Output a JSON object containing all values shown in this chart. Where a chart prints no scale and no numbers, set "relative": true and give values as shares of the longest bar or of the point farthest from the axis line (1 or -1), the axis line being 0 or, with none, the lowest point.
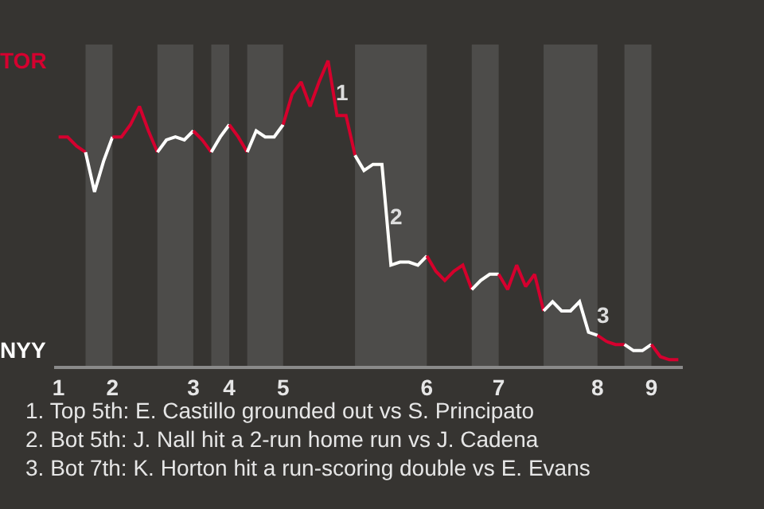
{
  "chart_data": {
    "type": "line",
    "relative": true,
    "categories": [
      "1",
      null,
      null,
      null,
      null,
      null,
      "2",
      null,
      null,
      null,
      null,
      null,
      null,
      null,
      null,
      "3",
      null,
      null,
      null,
      "4",
      null,
      null,
      null,
      null,
      null,
      "5",
      null,
      null,
      null,
      null,
      null,
      null,
      null,
      null,
      null,
      null,
      null,
      null,
      null,
      null,
      null,
      "6",
      null,
      null,
      null,
      null,
      null,
      null,
      null,
      "7",
      null,
      null,
      null,
      null,
      null,
      null,
      null,
      null,
      null,
      null,
      "8",
      null,
      null,
      null,
      null,
      null,
      "9",
      null,
      null,
      null
    ],
    "marker": "none",
    "line_style": "solid",
    "series": [
      {
        "color": "#d5002f",
        "values": [
          0.75,
          0.75,
          0.72,
          0.7,
          null,
          null,
          null,
          null,
          null,
          null,
          null,
          null,
          null,
          null,
          null,
          null,
          null,
          null,
          null,
          null,
          null,
          null,
          null,
          null,
          null,
          null,
          null,
          null,
          null,
          null,
          null,
          null,
          null,
          null,
          null,
          null,
          null,
          null,
          null,
          null,
          null,
          null,
          null,
          null,
          null,
          null,
          null,
          null,
          null,
          null,
          null,
          null,
          null,
          null,
          null,
          null,
          null,
          null,
          null,
          null,
          null,
          null,
          null,
          null,
          null,
          null,
          null,
          null,
          null,
          null
        ]
      },
      {
        "color": "#ffffff",
        "values": [
          null,
          null,
          null,
          0.7,
          0.57,
          0.67,
          0.75,
          null,
          null,
          null,
          null,
          null,
          null,
          null,
          null,
          null,
          null,
          null,
          null,
          null,
          null,
          null,
          null,
          null,
          null,
          null,
          null,
          null,
          null,
          null,
          null,
          null,
          null,
          null,
          null,
          null,
          null,
          null,
          null,
          null,
          null,
          null,
          null,
          null,
          null,
          null,
          null,
          null,
          null,
          null,
          null,
          null,
          null,
          null,
          null,
          null,
          null,
          null,
          null,
          null,
          null,
          null,
          null,
          null,
          null,
          null,
          null,
          null,
          null,
          null
        ]
      },
      {
        "color": "#d5002f",
        "values": [
          null,
          null,
          null,
          null,
          null,
          null,
          0.75,
          0.75,
          0.79,
          0.85,
          0.77,
          0.7,
          null,
          null,
          null,
          null,
          null,
          null,
          null,
          null,
          null,
          null,
          null,
          null,
          null,
          null,
          null,
          null,
          null,
          null,
          null,
          null,
          null,
          null,
          null,
          null,
          null,
          null,
          null,
          null,
          null,
          null,
          null,
          null,
          null,
          null,
          null,
          null,
          null,
          null,
          null,
          null,
          null,
          null,
          null,
          null,
          null,
          null,
          null,
          null,
          null,
          null,
          null,
          null,
          null,
          null,
          null,
          null,
          null,
          null
        ]
      },
      {
        "color": "#fffffe",
        "values": [
          null,
          null,
          null,
          null,
          null,
          null,
          null,
          null,
          null,
          null,
          null,
          0.7,
          0.74,
          0.75,
          0.74,
          0.77,
          null,
          null,
          null,
          null,
          null,
          null,
          null,
          null,
          null,
          null,
          null,
          null,
          null,
          null,
          null,
          null,
          null,
          null,
          null,
          null,
          null,
          null,
          null,
          null,
          null,
          null,
          null,
          null,
          null,
          null,
          null,
          null,
          null,
          null,
          null,
          null,
          null,
          null,
          null,
          null,
          null,
          null,
          null,
          null,
          null,
          null,
          null,
          null,
          null,
          null,
          null,
          null,
          null,
          null
        ]
      },
      {
        "color": "#d5002e",
        "values": [
          null,
          null,
          null,
          null,
          null,
          null,
          null,
          null,
          null,
          null,
          null,
          null,
          null,
          null,
          null,
          0.77,
          0.74,
          0.7,
          null,
          null,
          null,
          null,
          null,
          null,
          null,
          null,
          null,
          null,
          null,
          null,
          null,
          null,
          null,
          null,
          null,
          null,
          null,
          null,
          null,
          null,
          null,
          null,
          null,
          null,
          null,
          null,
          null,
          null,
          null,
          null,
          null,
          null,
          null,
          null,
          null,
          null,
          null,
          null,
          null,
          null,
          null,
          null,
          null,
          null,
          null,
          null,
          null,
          null,
          null,
          null
        ]
      },
      {
        "color": "#fffffd",
        "values": [
          null,
          null,
          null,
          null,
          null,
          null,
          null,
          null,
          null,
          null,
          null,
          null,
          null,
          null,
          null,
          null,
          null,
          0.7,
          0.75,
          0.79,
          null,
          null,
          null,
          null,
          null,
          null,
          null,
          null,
          null,
          null,
          null,
          null,
          null,
          null,
          null,
          null,
          null,
          null,
          null,
          null,
          null,
          null,
          null,
          null,
          null,
          null,
          null,
          null,
          null,
          null,
          null,
          null,
          null,
          null,
          null,
          null,
          null,
          null,
          null,
          null,
          null,
          null,
          null,
          null,
          null,
          null,
          null,
          null,
          null,
          null
        ]
      },
      {
        "color": "#d5002d",
        "values": [
          null,
          null,
          null,
          null,
          null,
          null,
          null,
          null,
          null,
          null,
          null,
          null,
          null,
          null,
          null,
          null,
          null,
          null,
          null,
          0.79,
          0.75,
          0.7,
          null,
          null,
          null,
          null,
          null,
          null,
          null,
          null,
          null,
          null,
          null,
          null,
          null,
          null,
          null,
          null,
          null,
          null,
          null,
          null,
          null,
          null,
          null,
          null,
          null,
          null,
          null,
          null,
          null,
          null,
          null,
          null,
          null,
          null,
          null,
          null,
          null,
          null,
          null,
          null,
          null,
          null,
          null,
          null,
          null,
          null,
          null,
          null
        ]
      },
      {
        "color": "#fffffc",
        "values": [
          null,
          null,
          null,
          null,
          null,
          null,
          null,
          null,
          null,
          null,
          null,
          null,
          null,
          null,
          null,
          null,
          null,
          null,
          null,
          null,
          null,
          0.7,
          0.77,
          0.75,
          0.75,
          0.79,
          null,
          null,
          null,
          null,
          null,
          null,
          null,
          null,
          null,
          null,
          null,
          null,
          null,
          null,
          null,
          null,
          null,
          null,
          null,
          null,
          null,
          null,
          null,
          null,
          null,
          null,
          null,
          null,
          null,
          null,
          null,
          null,
          null,
          null,
          null,
          null,
          null,
          null,
          null,
          null,
          null,
          null,
          null,
          null
        ]
      },
      {
        "color": "#d5002c",
        "values": [
          null,
          null,
          null,
          null,
          null,
          null,
          null,
          null,
          null,
          null,
          null,
          null,
          null,
          null,
          null,
          null,
          null,
          null,
          null,
          null,
          null,
          null,
          null,
          null,
          null,
          0.79,
          0.89,
          0.93,
          0.85,
          0.93,
          1,
          0.82,
          0.82,
          0.69,
          null,
          null,
          null,
          null,
          null,
          null,
          null,
          null,
          null,
          null,
          null,
          null,
          null,
          null,
          null,
          null,
          null,
          null,
          null,
          null,
          null,
          null,
          null,
          null,
          null,
          null,
          null,
          null,
          null,
          null,
          null,
          null,
          null,
          null,
          null,
          null
        ]
      },
      {
        "color": "#fffffb",
        "values": [
          null,
          null,
          null,
          null,
          null,
          null,
          null,
          null,
          null,
          null,
          null,
          null,
          null,
          null,
          null,
          null,
          null,
          null,
          null,
          null,
          null,
          null,
          null,
          null,
          null,
          null,
          null,
          null,
          null,
          null,
          null,
          null,
          null,
          0.69,
          0.64,
          0.66,
          0.66,
          0.33,
          0.34,
          0.34,
          0.33,
          0.36,
          null,
          null,
          null,
          null,
          null,
          null,
          null,
          null,
          null,
          null,
          null,
          null,
          null,
          null,
          null,
          null,
          null,
          null,
          null,
          null,
          null,
          null,
          null,
          null,
          null,
          null,
          null,
          null
        ]
      },
      {
        "color": "#d5002b",
        "values": [
          null,
          null,
          null,
          null,
          null,
          null,
          null,
          null,
          null,
          null,
          null,
          null,
          null,
          null,
          null,
          null,
          null,
          null,
          null,
          null,
          null,
          null,
          null,
          null,
          null,
          null,
          null,
          null,
          null,
          null,
          null,
          null,
          null,
          null,
          null,
          null,
          null,
          null,
          null,
          null,
          null,
          0.36,
          0.31,
          0.28,
          0.31,
          0.33,
          0.25,
          null,
          null,
          null,
          null,
          null,
          null,
          null,
          null,
          null,
          null,
          null,
          null,
          null,
          null,
          null,
          null,
          null,
          null,
          null,
          null,
          null,
          null,
          null
        ]
      },
      {
        "color": "#fffffa",
        "values": [
          null,
          null,
          null,
          null,
          null,
          null,
          null,
          null,
          null,
          null,
          null,
          null,
          null,
          null,
          null,
          null,
          null,
          null,
          null,
          null,
          null,
          null,
          null,
          null,
          null,
          null,
          null,
          null,
          null,
          null,
          null,
          null,
          null,
          null,
          null,
          null,
          null,
          null,
          null,
          null,
          null,
          null,
          null,
          null,
          null,
          null,
          0.25,
          0.28,
          0.3,
          0.3,
          null,
          null,
          null,
          null,
          null,
          null,
          null,
          null,
          null,
          null,
          null,
          null,
          null,
          null,
          null,
          null,
          null,
          null,
          null,
          null
        ]
      },
      {
        "color": "#d5002f",
        "values": [
          null,
          null,
          null,
          null,
          null,
          null,
          null,
          null,
          null,
          null,
          null,
          null,
          null,
          null,
          null,
          null,
          null,
          null,
          null,
          null,
          null,
          null,
          null,
          null,
          null,
          null,
          null,
          null,
          null,
          null,
          null,
          null,
          null,
          null,
          null,
          null,
          null,
          null,
          null,
          null,
          null,
          null,
          null,
          null,
          null,
          null,
          null,
          null,
          null,
          0.3,
          0.25,
          0.33,
          0.26,
          0.3,
          0.18,
          null,
          null,
          null,
          null,
          null,
          null,
          null,
          null,
          null,
          null,
          null,
          null,
          null,
          null,
          null
        ]
      },
      {
        "color": "#ffffff",
        "values": [
          null,
          null,
          null,
          null,
          null,
          null,
          null,
          null,
          null,
          null,
          null,
          null,
          null,
          null,
          null,
          null,
          null,
          null,
          null,
          null,
          null,
          null,
          null,
          null,
          null,
          null,
          null,
          null,
          null,
          null,
          null,
          null,
          null,
          null,
          null,
          null,
          null,
          null,
          null,
          null,
          null,
          null,
          null,
          null,
          null,
          null,
          null,
          null,
          null,
          null,
          null,
          null,
          null,
          null,
          0.18,
          0.21,
          0.18,
          0.18,
          0.21,
          0.11,
          0.1,
          null,
          null,
          null,
          null,
          null,
          null,
          null,
          null,
          null
        ]
      },
      {
        "color": "#d5002f",
        "values": [
          null,
          null,
          null,
          null,
          null,
          null,
          null,
          null,
          null,
          null,
          null,
          null,
          null,
          null,
          null,
          null,
          null,
          null,
          null,
          null,
          null,
          null,
          null,
          null,
          null,
          null,
          null,
          null,
          null,
          null,
          null,
          null,
          null,
          null,
          null,
          null,
          null,
          null,
          null,
          null,
          null,
          null,
          null,
          null,
          null,
          null,
          null,
          null,
          null,
          null,
          null,
          null,
          null,
          null,
          null,
          null,
          null,
          null,
          null,
          null,
          0.1,
          0.08,
          0.07,
          0.07,
          null,
          null,
          null,
          null,
          null,
          null
        ]
      },
      {
        "color": "#ffffff",
        "values": [
          null,
          null,
          null,
          null,
          null,
          null,
          null,
          null,
          null,
          null,
          null,
          null,
          null,
          null,
          null,
          null,
          null,
          null,
          null,
          null,
          null,
          null,
          null,
          null,
          null,
          null,
          null,
          null,
          null,
          null,
          null,
          null,
          null,
          null,
          null,
          null,
          null,
          null,
          null,
          null,
          null,
          null,
          null,
          null,
          null,
          null,
          null,
          null,
          null,
          null,
          null,
          null,
          null,
          null,
          null,
          null,
          null,
          null,
          null,
          null,
          null,
          null,
          null,
          0.07,
          0.05,
          0.05,
          0.07,
          null,
          null,
          null
        ]
      },
      {
        "color": "#d5002f",
        "values": [
          null,
          null,
          null,
          null,
          null,
          null,
          null,
          null,
          null,
          null,
          null,
          null,
          null,
          null,
          null,
          null,
          null,
          null,
          null,
          null,
          null,
          null,
          null,
          null,
          null,
          null,
          null,
          null,
          null,
          null,
          null,
          null,
          null,
          null,
          null,
          null,
          null,
          null,
          null,
          null,
          null,
          null,
          null,
          null,
          null,
          null,
          null,
          null,
          null,
          null,
          null,
          null,
          null,
          null,
          null,
          null,
          null,
          null,
          null,
          null,
          null,
          null,
          null,
          null,
          null,
          null,
          0.07,
          0.03,
          0.02,
          0.02
        ]
      }
    ],
    "annotations": [
      "TOR",
      "NYY",
      {
        "text": "1",
        "y": 0.84
      },
      {
        "text": "2",
        "y": 0.43
      },
      {
        "text": "3",
        "y": 0.11
      },
      "1. Top 5th: E. Castillo grounded out vs S. Principato",
      "2. Bot 5th: J. Nall hit a 2-run home run vs J. Cadena",
      "3. Bot 7th: K. Horton hit a run-scoring double vs E. Evans"
    ]
  }
}
